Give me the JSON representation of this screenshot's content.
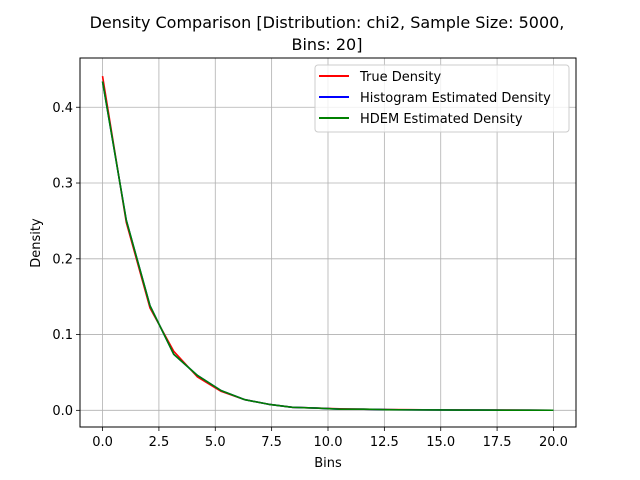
{
  "chart_data": {
    "type": "line",
    "title_line1": "Density Comparison [Distribution: chi2, Sample Size: 5000,",
    "title_line2": "Bins: 20]",
    "xlabel": "Bins",
    "ylabel": "Density",
    "xlim": [
      -1.0,
      21.0
    ],
    "ylim": [
      -0.022,
      0.465
    ],
    "xticks": [
      0.0,
      2.5,
      5.0,
      7.5,
      10.0,
      12.5,
      15.0,
      17.5,
      20.0
    ],
    "xtick_labels": [
      "0.0",
      "2.5",
      "5.0",
      "7.5",
      "10.0",
      "12.5",
      "15.0",
      "17.5",
      "20.0"
    ],
    "yticks": [
      0.0,
      0.1,
      0.2,
      0.3,
      0.4
    ],
    "ytick_labels": [
      "0.0",
      "0.1",
      "0.2",
      "0.3",
      "0.4"
    ],
    "grid": true,
    "legend_position": "upper right",
    "x": [
      0.0,
      1.0526,
      2.1053,
      3.1579,
      4.2105,
      5.2632,
      6.3158,
      7.3684,
      8.4211,
      9.4737,
      10.5263,
      11.5789,
      12.6316,
      13.6842,
      14.7368,
      15.7895,
      16.8421,
      17.8947,
      18.9474,
      20.0
    ],
    "series": [
      {
        "name": "True Density",
        "color": "#ff0000",
        "values": [
          0.441,
          0.248,
          0.135,
          0.078,
          0.044,
          0.025,
          0.014,
          0.008,
          0.004,
          0.003,
          0.002,
          0.0015,
          0.001,
          0.0008,
          0.0006,
          0.0005,
          0.0004,
          0.0003,
          0.0002,
          0.0001
        ]
      },
      {
        "name": "Histogram Estimated Density",
        "color": "#0000ff",
        "values": [
          0.434,
          0.251,
          0.138,
          0.074,
          0.046,
          0.026,
          0.014,
          0.008,
          0.004,
          0.003,
          0.0015,
          0.0015,
          0.0008,
          0.0006,
          0.0005,
          0.0004,
          0.0003,
          0.0002,
          0.0002,
          0.0001
        ]
      },
      {
        "name": "HDEM Estimated Density",
        "color": "#008000",
        "values": [
          0.434,
          0.251,
          0.138,
          0.074,
          0.046,
          0.026,
          0.014,
          0.008,
          0.004,
          0.003,
          0.0015,
          0.0015,
          0.0008,
          0.0006,
          0.0005,
          0.0004,
          0.0003,
          0.0002,
          0.0002,
          0.0001
        ]
      }
    ]
  }
}
